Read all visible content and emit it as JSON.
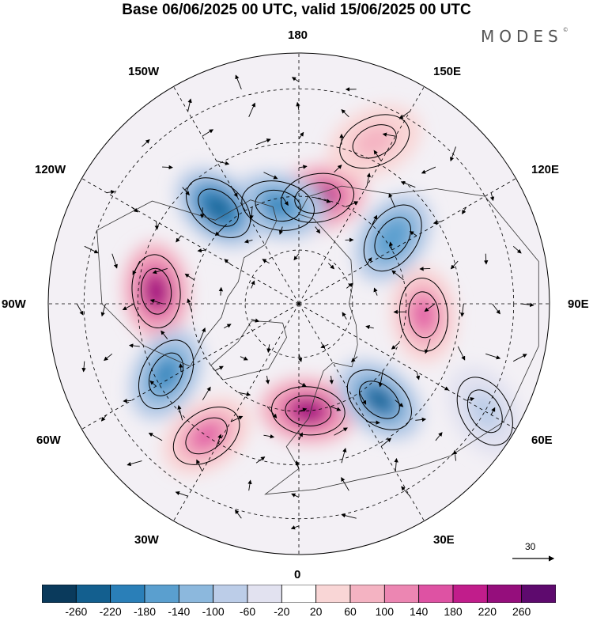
{
  "title": "Base 06/06/2025 00 UTC, valid 15/06/2025 00 UTC",
  "brand": "MODES",
  "brand_mark": "©",
  "longitude_labels": {
    "top": "180",
    "top_right": "150E",
    "right_upper": "120E",
    "right": "90E",
    "right_lower": "60E",
    "bottom_right": "30E",
    "bottom": "0",
    "bottom_left": "30W",
    "left_lower": "60W",
    "left": "90W",
    "left_upper": "120W",
    "top_left": "150W"
  },
  "reference_vector": "30",
  "colorbar": {
    "colors": [
      "#0a3a5c",
      "#135f8f",
      "#2a7fb8",
      "#5a9fcf",
      "#8cb8dd",
      "#bccde8",
      "#e2e2f0",
      "#ffffff",
      "#f9d6d6",
      "#f4b3c2",
      "#ec86b2",
      "#de52a3",
      "#c11d8b",
      "#950e7c",
      "#5e0a6e"
    ],
    "tick_labels": [
      "-260",
      "-220",
      "-180",
      "-140",
      "-100",
      "-60",
      "-20",
      "20",
      "60",
      "100",
      "140",
      "180",
      "220",
      "260"
    ]
  },
  "anomaly_centers": [
    {
      "lon": 170,
      "lat": 60,
      "value": 240
    },
    {
      "lon": -168,
      "lat": 62,
      "value": -220
    },
    {
      "lon": -140,
      "lat": 55,
      "value": -260
    },
    {
      "lon": -95,
      "lat": 50,
      "value": 230
    },
    {
      "lon": -62,
      "lat": 48,
      "value": -200
    },
    {
      "lon": -35,
      "lat": 45,
      "value": 160
    },
    {
      "lon": 5,
      "lat": 60,
      "value": 240
    },
    {
      "lon": 40,
      "lat": 55,
      "value": -230
    },
    {
      "lon": 85,
      "lat": 55,
      "value": 140
    },
    {
      "lon": 125,
      "lat": 58,
      "value": -180
    },
    {
      "lon": 155,
      "lat": 40,
      "value": 80
    },
    {
      "lon": 60,
      "lat": 30,
      "value": -100
    }
  ]
}
